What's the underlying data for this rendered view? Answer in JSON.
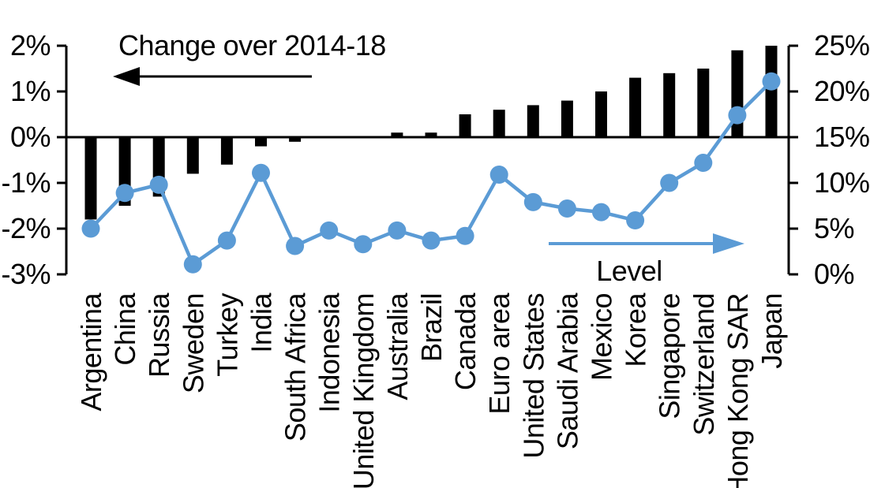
{
  "chart_data": {
    "type": "combo",
    "title": "",
    "categories": [
      "Argentina",
      "China",
      "Russia",
      "Sweden",
      "Turkey",
      "India",
      "South Africa",
      "Indonesia",
      "United Kingdom",
      "Australia",
      "Brazil",
      "Canada",
      "Euro area",
      "United States",
      "Saudi Arabia",
      "Mexico",
      "Korea",
      "Singapore",
      "Switzerland",
      "Hong Kong SAR",
      "Japan"
    ],
    "series": [
      {
        "name": "Change over 2014-18",
        "type": "bar",
        "axis": "left",
        "color": "#000000",
        "values": [
          -1.8,
          -1.5,
          -1.3,
          -0.8,
          -0.6,
          -0.2,
          -0.1,
          0.0,
          0.0,
          0.1,
          0.1,
          0.5,
          0.6,
          0.7,
          0.8,
          1.0,
          1.3,
          1.4,
          1.5,
          1.9,
          2.0
        ]
      },
      {
        "name": "Level",
        "type": "line",
        "axis": "right",
        "color": "#5B9BD5",
        "values": [
          5.0,
          8.9,
          9.8,
          1.1,
          3.7,
          11.1,
          3.1,
          4.8,
          3.3,
          4.8,
          3.7,
          4.2,
          10.9,
          7.9,
          7.2,
          6.8,
          5.9,
          10.0,
          12.2,
          17.4,
          21.1
        ]
      }
    ],
    "left_axis": {
      "ylim": [
        -3,
        2
      ],
      "tick_values": [
        2,
        1,
        0,
        -1,
        -2,
        -3
      ],
      "tick_labels": [
        "2%",
        "1%",
        "0%",
        "-1%",
        "-2%",
        "-3%"
      ]
    },
    "right_axis": {
      "ylim": [
        0,
        25
      ],
      "tick_values": [
        25,
        20,
        15,
        10,
        5,
        0
      ],
      "tick_labels": [
        "25%",
        "20%",
        "15%",
        "10%",
        "5%",
        "0%"
      ]
    },
    "annotations": [
      {
        "text": "Change over 2014-18",
        "arrow_direction": "left",
        "color": "#000000"
      },
      {
        "text": "Level",
        "arrow_direction": "right",
        "color": "#5B9BD5"
      }
    ],
    "grid": false,
    "legend_position": "in-plot-annotations"
  },
  "colors": {
    "bar": "#000000",
    "line": "#5B9BD5",
    "axis": "#000000",
    "text": "#000000",
    "background": "#FFFFFF"
  }
}
